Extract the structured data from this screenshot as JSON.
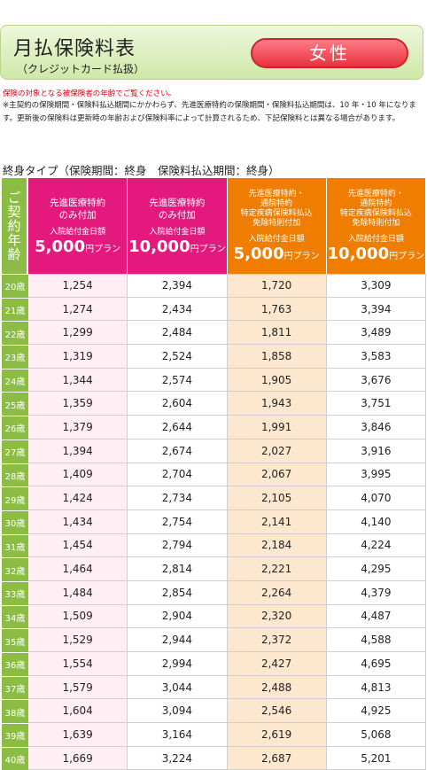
{
  "header": {
    "title": "月払保険料表",
    "subtitle": "（クレジットカード払扱）",
    "gender_button": "女性"
  },
  "notes": {
    "age_note": "保険の対象となる被保険者の年齢でご覧ください。",
    "main_note": "※主契約の保険期間・保険料払込期間にかかわらず、先進医療特約の保険期間・保険料払込期間は、10 年・10 年になります。更新後の保険料は更新時の年齢および保険料率によって計算されるため、下記保険料とは異なる場合があります。"
  },
  "section_title": "終身タイプ（保険期間：終身　保険料払込期間：終身）",
  "table": {
    "age_header": "ご契約年齢",
    "plans": [
      {
        "title": "先進医療特約\nのみ付加",
        "sub": "入院給付金日額",
        "amount": "5,000",
        "unit": "円プラン"
      },
      {
        "title": "先進医療特約\nのみ付加",
        "sub": "入院給付金日額",
        "amount": "10,000",
        "unit": "円プラン"
      },
      {
        "title": "先進医療特約・\n通院特約\n特定疾病保険料払込\n免除特則付加",
        "sub": "入院給付金日額",
        "amount": "5,000",
        "unit": "円プラン"
      },
      {
        "title": "先進医療特約・\n通院特約\n特定疾病保険料払込\n免除特則付加",
        "sub": "入院給付金日額",
        "amount": "10,000",
        "unit": "円プラン"
      }
    ],
    "rows": [
      {
        "age": "20歳",
        "v": [
          "1,254",
          "2,394",
          "1,720",
          "3,309"
        ]
      },
      {
        "age": "21歳",
        "v": [
          "1,274",
          "2,434",
          "1,763",
          "3,394"
        ]
      },
      {
        "age": "22歳",
        "v": [
          "1,299",
          "2,484",
          "1,811",
          "3,489"
        ]
      },
      {
        "age": "23歳",
        "v": [
          "1,319",
          "2,524",
          "1,858",
          "3,583"
        ]
      },
      {
        "age": "24歳",
        "v": [
          "1,344",
          "2,574",
          "1,905",
          "3,676"
        ]
      },
      {
        "age": "25歳",
        "v": [
          "1,359",
          "2,604",
          "1,943",
          "3,751"
        ]
      },
      {
        "age": "26歳",
        "v": [
          "1,379",
          "2,644",
          "1,991",
          "3,846"
        ]
      },
      {
        "age": "27歳",
        "v": [
          "1,394",
          "2,674",
          "2,027",
          "3,916"
        ]
      },
      {
        "age": "28歳",
        "v": [
          "1,409",
          "2,704",
          "2,067",
          "3,995"
        ]
      },
      {
        "age": "29歳",
        "v": [
          "1,424",
          "2,734",
          "2,105",
          "4,070"
        ]
      },
      {
        "age": "30歳",
        "v": [
          "1,434",
          "2,754",
          "2,141",
          "4,140"
        ]
      },
      {
        "age": "31歳",
        "v": [
          "1,454",
          "2,794",
          "2,184",
          "4,224"
        ]
      },
      {
        "age": "32歳",
        "v": [
          "1,464",
          "2,814",
          "2,221",
          "4,295"
        ]
      },
      {
        "age": "33歳",
        "v": [
          "1,484",
          "2,854",
          "2,264",
          "4,379"
        ]
      },
      {
        "age": "34歳",
        "v": [
          "1,509",
          "2,904",
          "2,320",
          "4,487"
        ]
      },
      {
        "age": "35歳",
        "v": [
          "1,529",
          "2,944",
          "2,372",
          "4,588"
        ]
      },
      {
        "age": "36歳",
        "v": [
          "1,554",
          "2,994",
          "2,427",
          "4,695"
        ]
      },
      {
        "age": "37歳",
        "v": [
          "1,579",
          "3,044",
          "2,488",
          "4,813"
        ]
      },
      {
        "age": "38歳",
        "v": [
          "1,604",
          "3,094",
          "2,546",
          "4,925"
        ]
      },
      {
        "age": "39歳",
        "v": [
          "1,639",
          "3,164",
          "2,619",
          "5,068"
        ]
      },
      {
        "age": "40歳",
        "v": [
          "1,669",
          "3,224",
          "2,687",
          "5,201"
        ]
      }
    ]
  },
  "colors": {
    "green": "#8bbc43",
    "pink": "#e4197e",
    "orange": "#ee7d00",
    "red_button": "#e8333f",
    "note_red": "#e00010"
  }
}
